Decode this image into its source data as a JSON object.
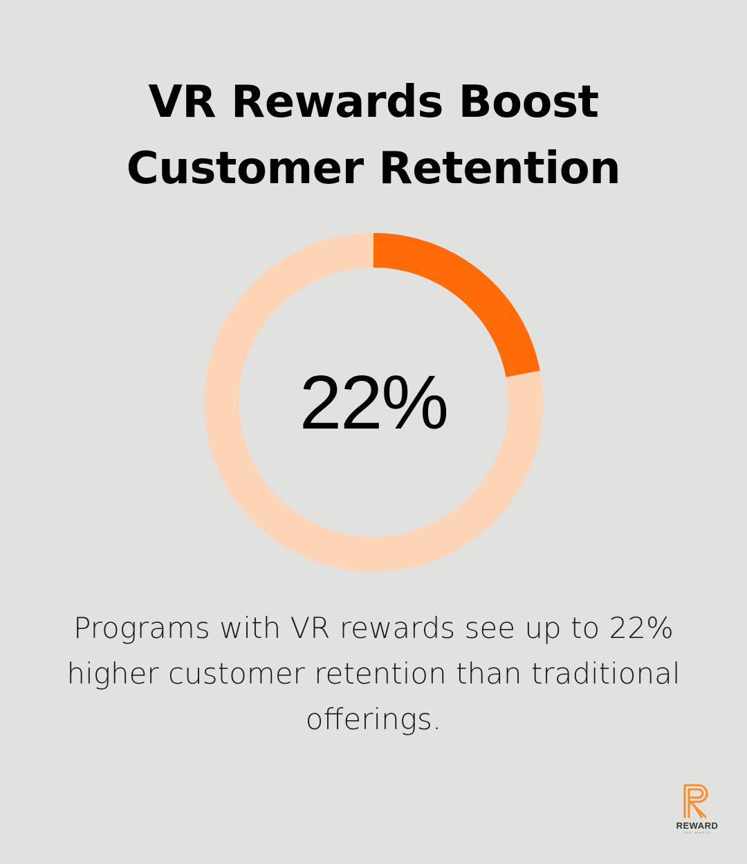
{
  "chart_data": {
    "type": "pie",
    "title_lines": [
      "VR Rewards Boost",
      "Customer Retention"
    ],
    "value": 22,
    "value_label": "22%",
    "max": 100,
    "description": "Programs with VR rewards see up to 22% higher customer retention than traditional offerings.",
    "colors": {
      "filled": "#ff6b08",
      "remaining": "#fdd4b5",
      "background": "#e1e2e0"
    }
  },
  "logo": {
    "word": "REWARD",
    "tagline": "THE WORLD",
    "color": "#ff8a2a"
  }
}
